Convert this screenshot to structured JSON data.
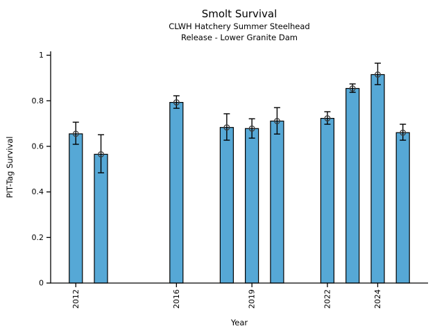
{
  "chart_data": {
    "type": "bar",
    "title": "Smolt Survival",
    "subtitle_line1": "CLWH Hatchery Summer Steelhead",
    "subtitle_line2": "Release - Lower Granite Dam",
    "xlabel": "Year",
    "ylabel": "PIT-Tag Survival",
    "categories": [
      2012,
      2013,
      2016,
      2018,
      2019,
      2020,
      2022,
      2023,
      2024,
      2025
    ],
    "values": [
      0.655,
      0.565,
      0.793,
      0.683,
      0.678,
      0.711,
      0.723,
      0.854,
      0.915,
      0.66
    ],
    "error_low": [
      0.609,
      0.484,
      0.767,
      0.627,
      0.636,
      0.654,
      0.697,
      0.837,
      0.871,
      0.627
    ],
    "error_high": [
      0.706,
      0.651,
      0.822,
      0.743,
      0.721,
      0.77,
      0.752,
      0.874,
      0.965,
      0.697
    ],
    "xticks": [
      2012,
      2016,
      2019,
      2022,
      2024
    ],
    "yticks": [
      0,
      0.2,
      0.4,
      0.6,
      0.8,
      1
    ],
    "ytick_labels": [
      "0",
      "0.2",
      "0.4",
      "0.6",
      "0.8",
      "1"
    ],
    "xlim": [
      2011,
      2026
    ],
    "ylim": [
      0,
      1.017
    ],
    "grid": false,
    "legend": null,
    "marker": "open-circle",
    "error_caps": true,
    "colors": {
      "bar_fill": "#56a8d6",
      "bar_edge": "#000000",
      "error": "#000000",
      "marker_edge": "#3b3b3b",
      "axis": "#000000",
      "text": "#000000"
    }
  }
}
